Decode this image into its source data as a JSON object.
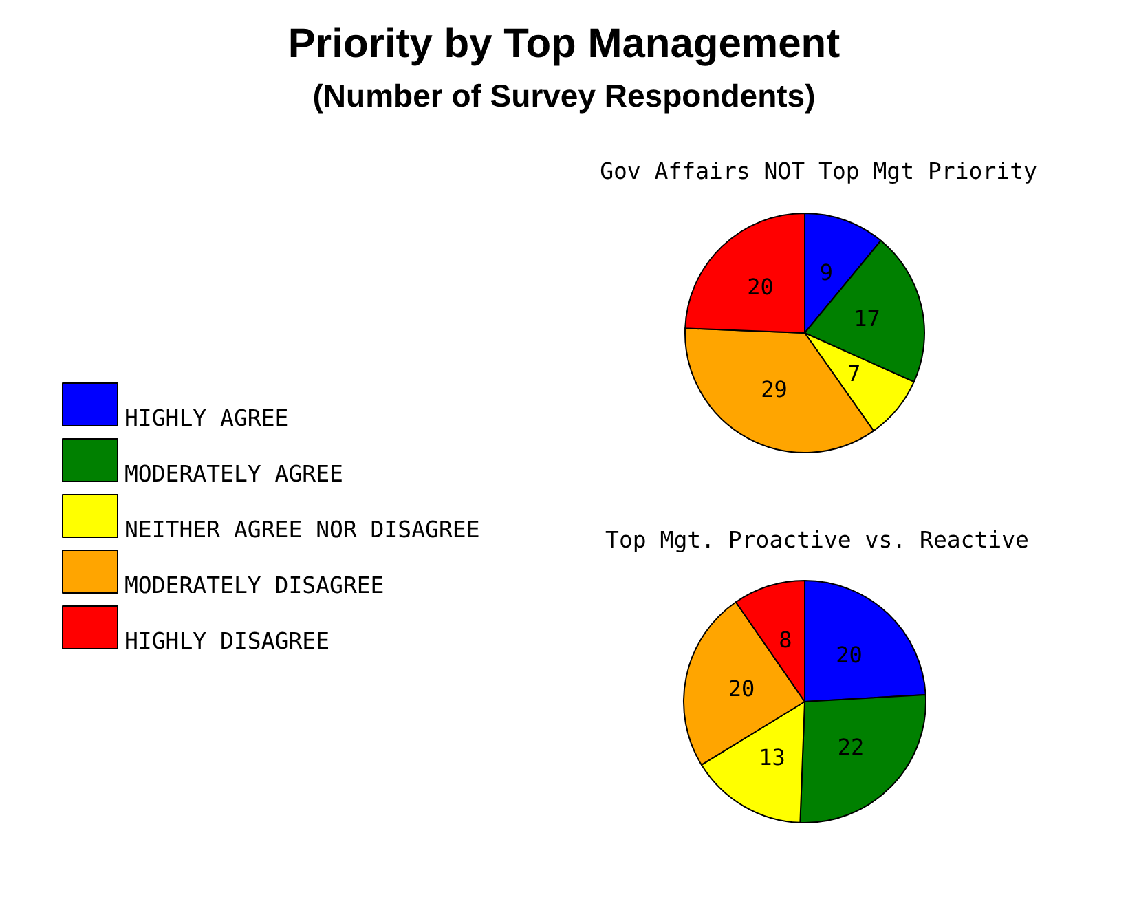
{
  "chart_data": {
    "type": "pie",
    "title": "Priority by Top Management",
    "subtitle": "(Number of Survey Respondents)",
    "categories": [
      "HIGHLY AGREE",
      "MODERATELY AGREE",
      "NEITHER AGREE NOR DISAGREE",
      "MODERATELY DISAGREE",
      "HIGHLY DISAGREE"
    ],
    "colors": [
      "#0000ff",
      "#008000",
      "#ffff00",
      "#ffa500",
      "#ff0000"
    ],
    "series": [
      {
        "name": "Gov Affairs NOT Top Mgt Priority",
        "values": [
          9,
          17,
          7,
          29,
          20
        ]
      },
      {
        "name": "Top Mgt. Proactive vs. Reactive",
        "values": [
          20,
          22,
          13,
          20,
          8
        ]
      }
    ],
    "data_labels": true,
    "legend": "left"
  }
}
